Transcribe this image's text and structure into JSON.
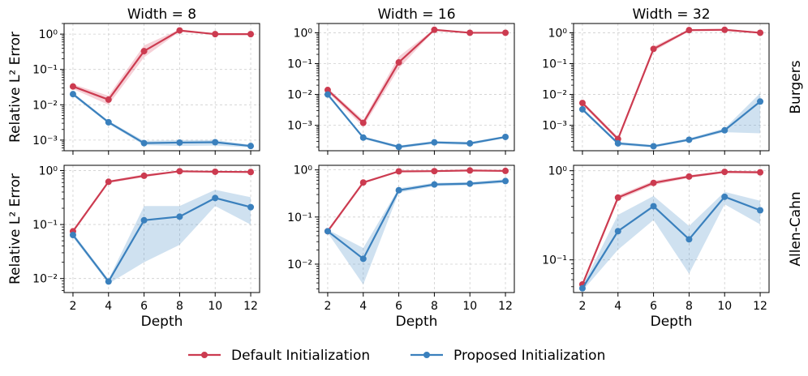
{
  "colors": {
    "default": "#cc3b50",
    "proposed": "#3a80bd"
  },
  "legend": {
    "default_label": "Default Initialization",
    "proposed_label": "Proposed Initialization"
  },
  "row_labels": [
    "Burgers",
    "Allen-Cahn"
  ],
  "ylabel": "Relative L² Error",
  "xlabel": "Depth",
  "chart_data": [
    {
      "type": "line",
      "title": "Width = 8",
      "row": "Burgers",
      "xlabel": "",
      "ylabel": "Relative L² Error",
      "yscale": "log",
      "ylim": [
        0.0005,
        2
      ],
      "x": [
        2,
        4,
        6,
        8,
        10,
        12
      ],
      "x_ticks": [
        "2",
        "4",
        "6",
        "8",
        "10",
        "12"
      ],
      "y_ticks": [
        {
          "v": 0.001,
          "label": "10⁻³"
        },
        {
          "v": 0.01,
          "label": "10⁻²"
        },
        {
          "v": 0.1,
          "label": "10⁻¹"
        },
        {
          "v": 1,
          "label": "10⁰"
        }
      ],
      "series": [
        {
          "name": "Default Initialization",
          "values": [
            0.033,
            0.014,
            0.33,
            1.27,
            1.0,
            1.0
          ],
          "lower": [
            0.028,
            0.01,
            0.22,
            1.18,
            0.96,
            0.96
          ],
          "upper": [
            0.038,
            0.018,
            0.48,
            1.36,
            1.04,
            1.04
          ]
        },
        {
          "name": "Proposed Initialization",
          "values": [
            0.02,
            0.0032,
            0.00082,
            0.00085,
            0.00087,
            0.00068
          ],
          "lower": [
            0.018,
            0.0029,
            0.00072,
            0.00068,
            0.0007,
            0.00062
          ],
          "upper": [
            0.022,
            0.0035,
            0.00095,
            0.001,
            0.001,
            0.00074
          ]
        }
      ]
    },
    {
      "type": "line",
      "title": "Width = 16",
      "row": "Burgers",
      "xlabel": "",
      "ylabel": "",
      "yscale": "log",
      "ylim": [
        0.00015,
        2
      ],
      "x": [
        2,
        4,
        6,
        8,
        10,
        12
      ],
      "x_ticks": [
        "2",
        "4",
        "6",
        "8",
        "10",
        "12"
      ],
      "y_ticks": [
        {
          "v": 0.001,
          "label": "10⁻³"
        },
        {
          "v": 0.01,
          "label": "10⁻²"
        },
        {
          "v": 0.1,
          "label": "10⁻¹"
        },
        {
          "v": 1,
          "label": "10⁰"
        }
      ],
      "series": [
        {
          "name": "Default Initialization",
          "values": [
            0.014,
            0.0012,
            0.11,
            1.25,
            1.0,
            1.0
          ],
          "lower": [
            0.012,
            0.0009,
            0.07,
            1.18,
            0.96,
            0.96
          ],
          "upper": [
            0.016,
            0.0015,
            0.17,
            1.32,
            1.04,
            1.04
          ]
        },
        {
          "name": "Proposed Initialization",
          "values": [
            0.01,
            0.0004,
            0.0002,
            0.00028,
            0.00026,
            0.00042
          ],
          "lower": [
            0.009,
            0.00036,
            0.00018,
            0.00025,
            0.00023,
            0.00039
          ],
          "upper": [
            0.011,
            0.00044,
            0.00022,
            0.00031,
            0.00029,
            0.00045
          ]
        }
      ]
    },
    {
      "type": "line",
      "title": "Width = 32",
      "row": "Burgers",
      "xlabel": "",
      "ylabel": "",
      "yscale": "log",
      "ylim": [
        0.00015,
        2
      ],
      "x": [
        2,
        4,
        6,
        8,
        10,
        12
      ],
      "x_ticks": [
        "2",
        "4",
        "6",
        "8",
        "10",
        "12"
      ],
      "y_ticks": [
        {
          "v": 0.001,
          "label": "10⁻³"
        },
        {
          "v": 0.01,
          "label": "10⁻²"
        },
        {
          "v": 0.1,
          "label": "10⁻¹"
        },
        {
          "v": 1,
          "label": "10⁰"
        }
      ],
      "series": [
        {
          "name": "Default Initialization",
          "values": [
            0.0053,
            0.00036,
            0.3,
            1.22,
            1.25,
            1.0
          ],
          "lower": [
            0.0046,
            0.00031,
            0.25,
            1.12,
            1.15,
            0.94
          ],
          "upper": [
            0.006,
            0.00042,
            0.36,
            1.32,
            1.35,
            1.06
          ]
        },
        {
          "name": "Proposed Initialization",
          "values": [
            0.0033,
            0.00026,
            0.00021,
            0.00034,
            0.00069,
            0.0059
          ],
          "lower": [
            0.0029,
            0.00023,
            0.00019,
            0.00031,
            0.0006,
            0.00055
          ],
          "upper": [
            0.0037,
            0.00029,
            0.00023,
            0.00038,
            0.0008,
            0.011
          ]
        }
      ]
    },
    {
      "type": "line",
      "title": "",
      "row": "Allen-Cahn",
      "xlabel": "Depth",
      "ylabel": "Relative L² Error",
      "yscale": "log",
      "ylim": [
        0.0055,
        1.25
      ],
      "x": [
        2,
        4,
        6,
        8,
        10,
        12
      ],
      "x_ticks": [
        "2",
        "4",
        "6",
        "8",
        "10",
        "12"
      ],
      "y_ticks": [
        {
          "v": 0.01,
          "label": "10⁻²"
        },
        {
          "v": 0.1,
          "label": "10⁻¹"
        },
        {
          "v": 1,
          "label": "10⁰"
        }
      ],
      "series": [
        {
          "name": "Default Initialization",
          "values": [
            0.075,
            0.62,
            0.8,
            0.97,
            0.95,
            0.94
          ],
          "lower": [
            0.07,
            0.59,
            0.75,
            0.95,
            0.93,
            0.92
          ],
          "upper": [
            0.08,
            0.65,
            0.85,
            0.99,
            0.97,
            0.96
          ]
        },
        {
          "name": "Proposed Initialization",
          "values": [
            0.064,
            0.0088,
            0.12,
            0.14,
            0.31,
            0.21
          ],
          "lower": [
            0.058,
            0.008,
            0.02,
            0.042,
            0.22,
            0.1
          ],
          "upper": [
            0.07,
            0.0096,
            0.22,
            0.22,
            0.44,
            0.32
          ]
        }
      ]
    },
    {
      "type": "line",
      "title": "",
      "row": "Allen-Cahn",
      "xlabel": "Depth",
      "ylabel": "",
      "yscale": "log",
      "ylim": [
        0.0025,
        1.25
      ],
      "x": [
        2,
        4,
        6,
        8,
        10,
        12
      ],
      "x_ticks": [
        "2",
        "4",
        "6",
        "8",
        "10",
        "12"
      ],
      "y_ticks": [
        {
          "v": 0.01,
          "label": "10⁻²"
        },
        {
          "v": 0.1,
          "label": "10⁻¹"
        },
        {
          "v": 1,
          "label": "10⁰"
        }
      ],
      "series": [
        {
          "name": "Default Initialization",
          "values": [
            0.05,
            0.54,
            0.93,
            0.94,
            0.97,
            0.95
          ],
          "lower": [
            0.047,
            0.51,
            0.9,
            0.91,
            0.94,
            0.92
          ],
          "upper": [
            0.053,
            0.57,
            0.96,
            0.97,
            1.0,
            0.98
          ]
        },
        {
          "name": "Proposed Initialization",
          "values": [
            0.05,
            0.013,
            0.37,
            0.49,
            0.51,
            0.58
          ],
          "lower": [
            0.046,
            0.0037,
            0.33,
            0.45,
            0.47,
            0.53
          ],
          "upper": [
            0.054,
            0.022,
            0.41,
            0.53,
            0.55,
            0.63
          ]
        }
      ]
    },
    {
      "type": "line",
      "title": "",
      "row": "Allen-Cahn",
      "xlabel": "Depth",
      "ylabel": "",
      "yscale": "log",
      "ylim": [
        0.043,
        1.15
      ],
      "x": [
        2,
        4,
        6,
        8,
        10,
        12
      ],
      "x_ticks": [
        "2",
        "4",
        "6",
        "8",
        "10",
        "12"
      ],
      "y_ticks": [
        {
          "v": 0.1,
          "label": "10⁻¹"
        },
        {
          "v": 1,
          "label": "10⁰"
        }
      ],
      "series": [
        {
          "name": "Default Initialization",
          "values": [
            0.053,
            0.5,
            0.73,
            0.86,
            0.97,
            0.96
          ],
          "lower": [
            0.05,
            0.47,
            0.69,
            0.83,
            0.94,
            0.93
          ],
          "upper": [
            0.056,
            0.53,
            0.77,
            0.89,
            1.0,
            0.99
          ]
        },
        {
          "name": "Proposed Initialization",
          "values": [
            0.048,
            0.21,
            0.4,
            0.17,
            0.51,
            0.36
          ],
          "lower": [
            0.045,
            0.13,
            0.28,
            0.07,
            0.42,
            0.25
          ],
          "upper": [
            0.051,
            0.32,
            0.52,
            0.24,
            0.58,
            0.46
          ]
        }
      ]
    }
  ]
}
